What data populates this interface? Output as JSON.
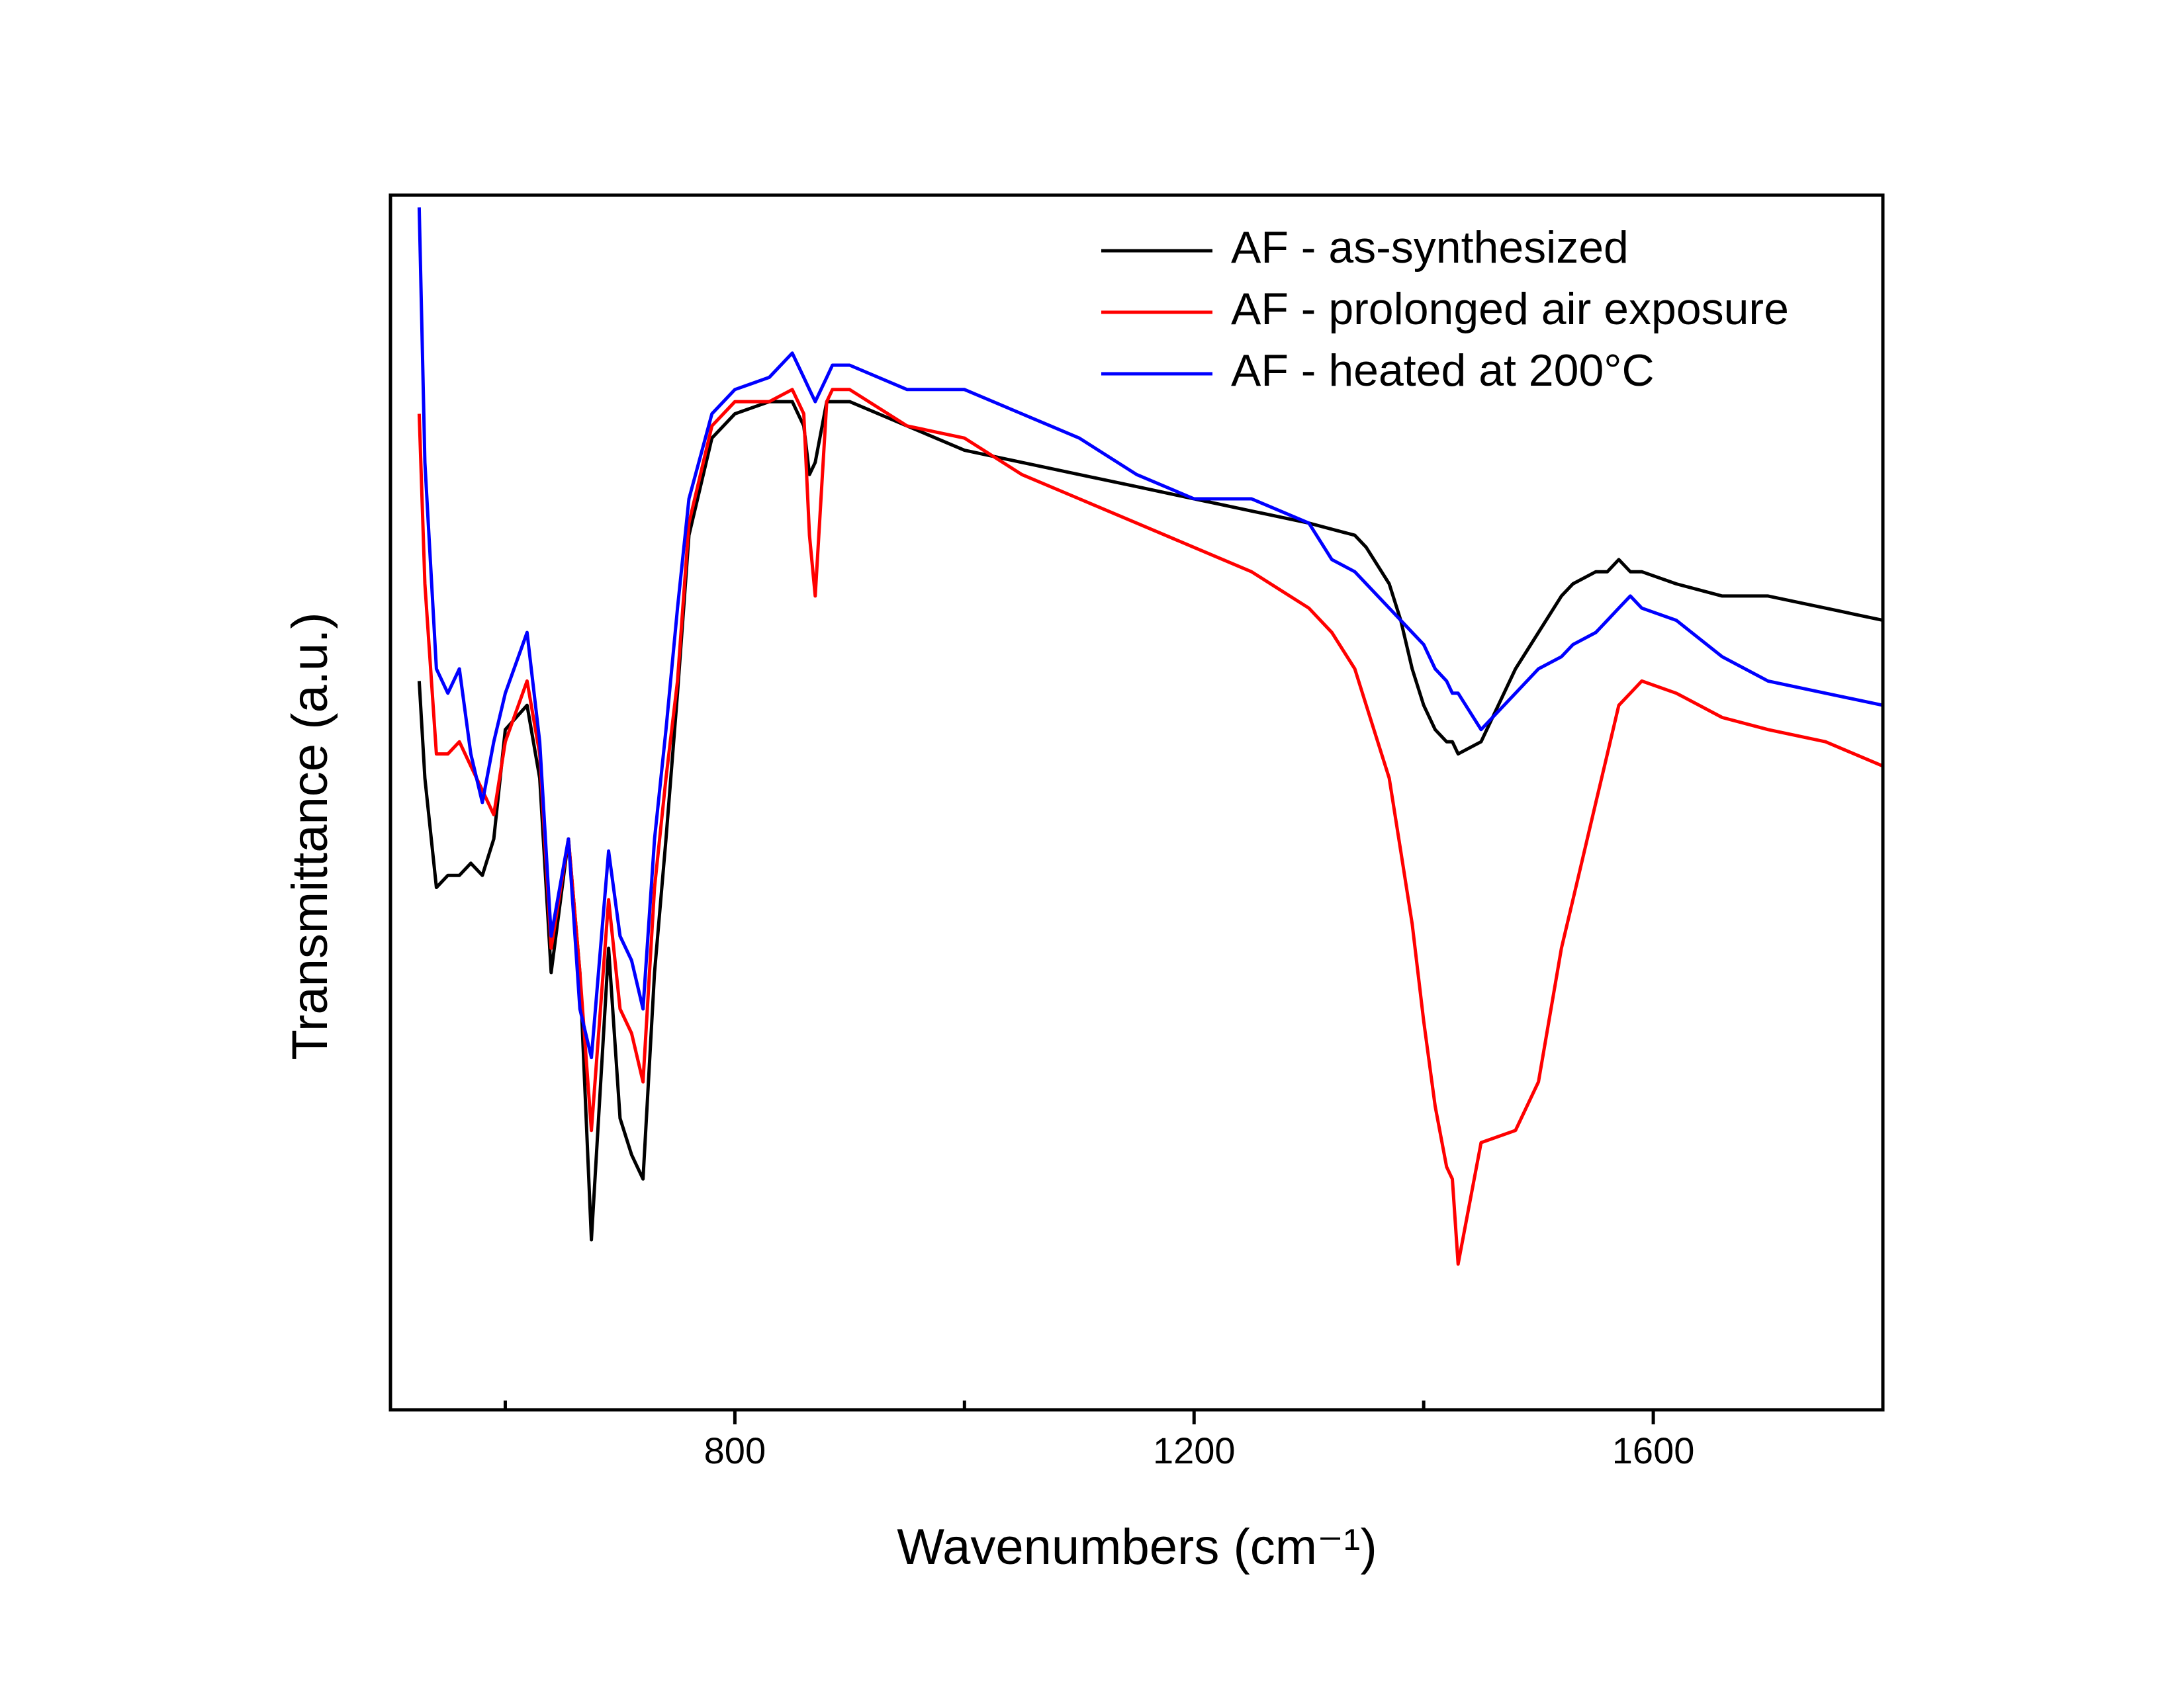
{
  "chart_data": {
    "type": "line",
    "xlabel": "Wavenumbers (cm⁻¹)",
    "ylabel": "Transmittance (a.u.)",
    "xlim": [
      500,
      1800
    ],
    "ylim": [
      0,
      100
    ],
    "xticks": [
      800,
      1200,
      1600
    ],
    "xminorticks": [
      600,
      1000,
      1400
    ],
    "legend": "upper right",
    "x": [
      525,
      530,
      540,
      550,
      560,
      570,
      580,
      590,
      600,
      619,
      630,
      640,
      655,
      665,
      675,
      690,
      700,
      710,
      720,
      730,
      740,
      750,
      760,
      780,
      800,
      830,
      850,
      860,
      865,
      870,
      880,
      885,
      900,
      950,
      1000,
      1050,
      1100,
      1150,
      1200,
      1250,
      1300,
      1320,
      1340,
      1350,
      1370,
      1380,
      1390,
      1400,
      1410,
      1420,
      1425,
      1430,
      1450,
      1480,
      1500,
      1520,
      1530,
      1550,
      1560,
      1570,
      1580,
      1590,
      1620,
      1660,
      1700,
      1750,
      1800
    ],
    "series": [
      {
        "name": "AF - as-synthesized",
        "color": "#000000",
        "values": [
          60,
          52,
          43,
          44,
          44,
          45,
          44,
          47,
          56,
          58,
          52,
          36,
          47,
          36,
          14,
          38,
          24,
          21,
          19,
          36,
          47,
          59,
          72,
          80,
          82,
          83,
          83,
          81,
          77,
          78,
          83,
          83,
          83,
          81,
          79,
          78,
          77,
          76,
          75,
          74,
          73,
          72.5,
          72,
          71,
          68,
          65,
          61,
          58,
          56,
          55,
          55,
          54,
          55,
          61,
          64,
          67,
          68,
          69,
          69,
          70,
          69,
          69,
          68,
          67,
          67,
          66,
          65
        ]
      },
      {
        "name": "AF - prolonged air exposure",
        "color": "#ff0000",
        "values": [
          82,
          68,
          54,
          54,
          55,
          53,
          51,
          49,
          55,
          60,
          54,
          38,
          47,
          36,
          23,
          42,
          33,
          31,
          27,
          43,
          52,
          60,
          73,
          81,
          83,
          83,
          84,
          82,
          72,
          67,
          83,
          84,
          84,
          81,
          80,
          77,
          75,
          73,
          71,
          69,
          66,
          64,
          61,
          58,
          52,
          46,
          40,
          32,
          25,
          20,
          19,
          12,
          22,
          23,
          27,
          38,
          42,
          50,
          54,
          58,
          59,
          60,
          59,
          57,
          56,
          55,
          53
        ]
      },
      {
        "name": "AF - heated at 200°C",
        "color": "#0000ff",
        "values": [
          99,
          78,
          61,
          59,
          61,
          54,
          50,
          55,
          59,
          64,
          55,
          39,
          47,
          33,
          29,
          46,
          39,
          37,
          33,
          47,
          56,
          66,
          75,
          82,
          84,
          85,
          87,
          85,
          84,
          83,
          85,
          86,
          86,
          84,
          84,
          82,
          80,
          77,
          75,
          75,
          73,
          70,
          69,
          68,
          66,
          65,
          64,
          63,
          61,
          60,
          59,
          59,
          56,
          59,
          61,
          62,
          63,
          64,
          65,
          66,
          67,
          66,
          65,
          62,
          60,
          59,
          58
        ]
      }
    ]
  }
}
